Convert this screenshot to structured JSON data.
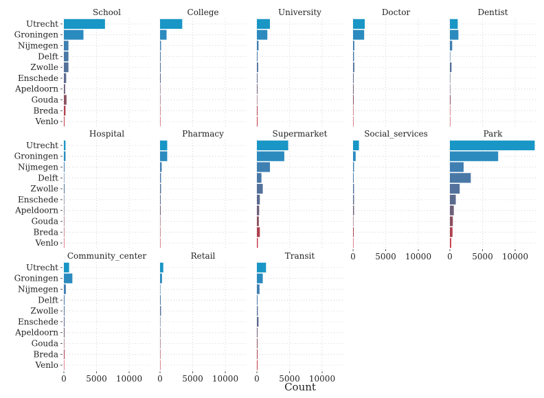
{
  "chart_data": {
    "type": "bar",
    "orientation": "horizontal",
    "layout": "faceted grid, 5 columns x 3 rows, shared x scale",
    "xlabel": "Count",
    "ylabel": "",
    "xlim": [
      0,
      13000
    ],
    "x_ticks": [
      0,
      5000,
      10000
    ],
    "x_tick_labels": [
      "0",
      "5000",
      "10000"
    ],
    "grid": "dotted",
    "categories": [
      "Utrecht",
      "Groningen",
      "Nijmegen",
      "Delft",
      "Zwolle",
      "Enschede",
      "Apeldoorn",
      "Gouda",
      "Breda",
      "Venlo"
    ],
    "category_colors": [
      "#1996c6",
      "#2b8bbf",
      "#3f7fb2",
      "#4a78a6",
      "#53719a",
      "#5c6a8e",
      "#6e5f7a",
      "#8c5060",
      "#b0404f",
      "#c73a48"
    ],
    "facets": [
      {
        "name": "School",
        "values": [
          6300,
          3000,
          700,
          700,
          700,
          350,
          200,
          400,
          250,
          50
        ]
      },
      {
        "name": "College",
        "values": [
          3400,
          1000,
          150,
          50,
          100,
          50,
          0,
          0,
          0,
          0
        ]
      },
      {
        "name": "University",
        "values": [
          2000,
          1600,
          250,
          100,
          200,
          100,
          50,
          0,
          50,
          30
        ]
      },
      {
        "name": "Doctor",
        "values": [
          1800,
          1700,
          200,
          150,
          200,
          50,
          50,
          100,
          0,
          0
        ]
      },
      {
        "name": "Dentist",
        "values": [
          1200,
          1300,
          350,
          0,
          250,
          0,
          0,
          80,
          0,
          0
        ]
      },
      {
        "name": "Hospital",
        "values": [
          250,
          250,
          50,
          0,
          50,
          0,
          0,
          0,
          0,
          0
        ]
      },
      {
        "name": "Pharmacy",
        "values": [
          1100,
          1100,
          250,
          150,
          150,
          100,
          50,
          0,
          0,
          0
        ]
      },
      {
        "name": "Supermarket",
        "values": [
          4800,
          4200,
          2000,
          700,
          900,
          450,
          350,
          300,
          450,
          150
        ]
      },
      {
        "name": "Social_services",
        "values": [
          900,
          400,
          150,
          50,
          150,
          150,
          150,
          0,
          50,
          0
        ]
      },
      {
        "name": "Park",
        "values": [
          13000,
          7400,
          2100,
          3200,
          1500,
          900,
          600,
          450,
          400,
          200
        ]
      },
      {
        "name": "Community_center",
        "values": [
          800,
          1300,
          300,
          50,
          100,
          80,
          30,
          0,
          30,
          0
        ]
      },
      {
        "name": "Retail",
        "values": [
          500,
          300,
          0,
          100,
          150,
          0,
          0,
          0,
          0,
          0
        ]
      },
      {
        "name": "Transit",
        "values": [
          1400,
          900,
          400,
          100,
          150,
          250,
          100,
          100,
          100,
          80
        ]
      }
    ],
    "x_axis_facets": [
      "Social_services",
      "Park",
      "Community_center",
      "Retail",
      "Transit"
    ],
    "y_axis_facets": [
      "School",
      "Hospital",
      "Community_center"
    ]
  }
}
